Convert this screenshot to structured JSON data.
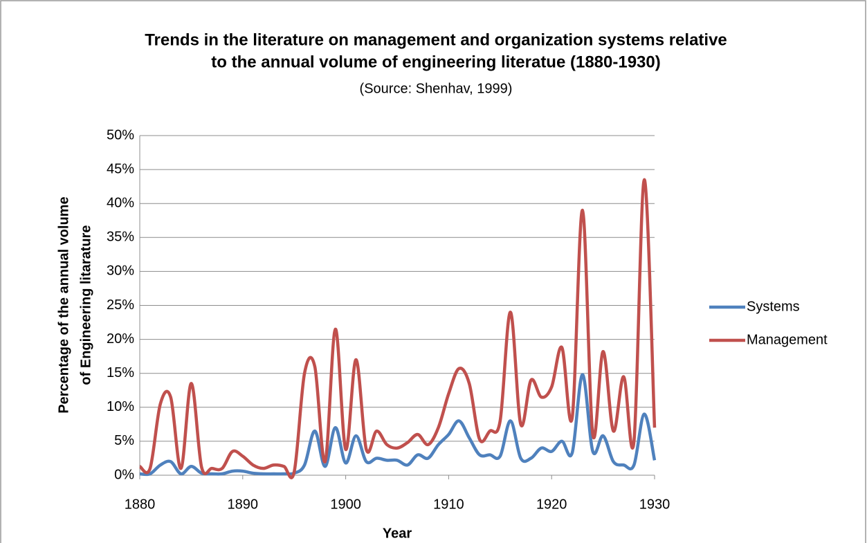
{
  "chart_data": {
    "type": "line",
    "title": [
      "Trends in the literature on management and organization systems relative",
      "to the annual volume of engineering literatue (1880-1930)"
    ],
    "subtitle": "(Source: Shenhav, 1999)",
    "xlabel": "Year",
    "ylabel": [
      "Percentage of the annual volume",
      "of Engineering litarature"
    ],
    "x": [
      1880,
      1881,
      1882,
      1883,
      1884,
      1885,
      1886,
      1887,
      1888,
      1889,
      1890,
      1891,
      1892,
      1893,
      1894,
      1895,
      1896,
      1897,
      1898,
      1899,
      1900,
      1901,
      1902,
      1903,
      1904,
      1905,
      1906,
      1907,
      1908,
      1909,
      1910,
      1911,
      1912,
      1913,
      1914,
      1915,
      1916,
      1917,
      1918,
      1919,
      1920,
      1921,
      1922,
      1923,
      1924,
      1925,
      1926,
      1927,
      1928,
      1929,
      1930
    ],
    "series": [
      {
        "name": "Systems",
        "color": "#4f81bd",
        "values": [
          0.2,
          0.2,
          1.5,
          2,
          0.2,
          1.3,
          0.3,
          0.2,
          0.2,
          0.6,
          0.6,
          0.3,
          0.2,
          0.2,
          0.2,
          0.3,
          1.5,
          6.5,
          1.3,
          7,
          1.8,
          5.8,
          2,
          2.5,
          2.2,
          2.2,
          1.5,
          3,
          2.5,
          4.5,
          6,
          8,
          5.5,
          3,
          3,
          2.8,
          8,
          2.5,
          2.5,
          4,
          3.5,
          5,
          3.3,
          14.8,
          3.5,
          5.8,
          2,
          1.5,
          1.5,
          9,
          2.2
        ]
      },
      {
        "name": "Management",
        "color": "#c0504d",
        "values": [
          1.3,
          1,
          10.5,
          11.5,
          1,
          13.5,
          1.2,
          1,
          1,
          3.5,
          2.8,
          1.5,
          1,
          1.5,
          1.3,
          0.5,
          15,
          16,
          2,
          21.5,
          3.8,
          17,
          3.8,
          6.5,
          4.5,
          4,
          4.8,
          6,
          4.5,
          7,
          12,
          15.7,
          13.5,
          5.3,
          6.5,
          8,
          24,
          7.5,
          14,
          11.5,
          13,
          18.8,
          8.5,
          39,
          6,
          18.2,
          6.5,
          14.5,
          5,
          43.5,
          7
        ]
      }
    ],
    "xlim": [
      1880,
      1930
    ],
    "xticks": [
      1880,
      1890,
      1900,
      1910,
      1920,
      1930
    ],
    "ylim": [
      0,
      50
    ],
    "yticks": [
      {
        "value": 0,
        "label": "0%"
      },
      {
        "value": 5,
        "label": "5%"
      },
      {
        "value": 10,
        "label": "10%"
      },
      {
        "value": 15,
        "label": "15%"
      },
      {
        "value": 20,
        "label": "20%"
      },
      {
        "value": 25,
        "label": "25%"
      },
      {
        "value": 30,
        "label": "30%"
      },
      {
        "value": 35,
        "label": "35%"
      },
      {
        "value": 40,
        "label": "40%"
      },
      {
        "value": 45,
        "label": "45%"
      },
      {
        "value": 50,
        "label": "50%"
      }
    ],
    "grid": true,
    "smooth": true,
    "legend": "right"
  }
}
